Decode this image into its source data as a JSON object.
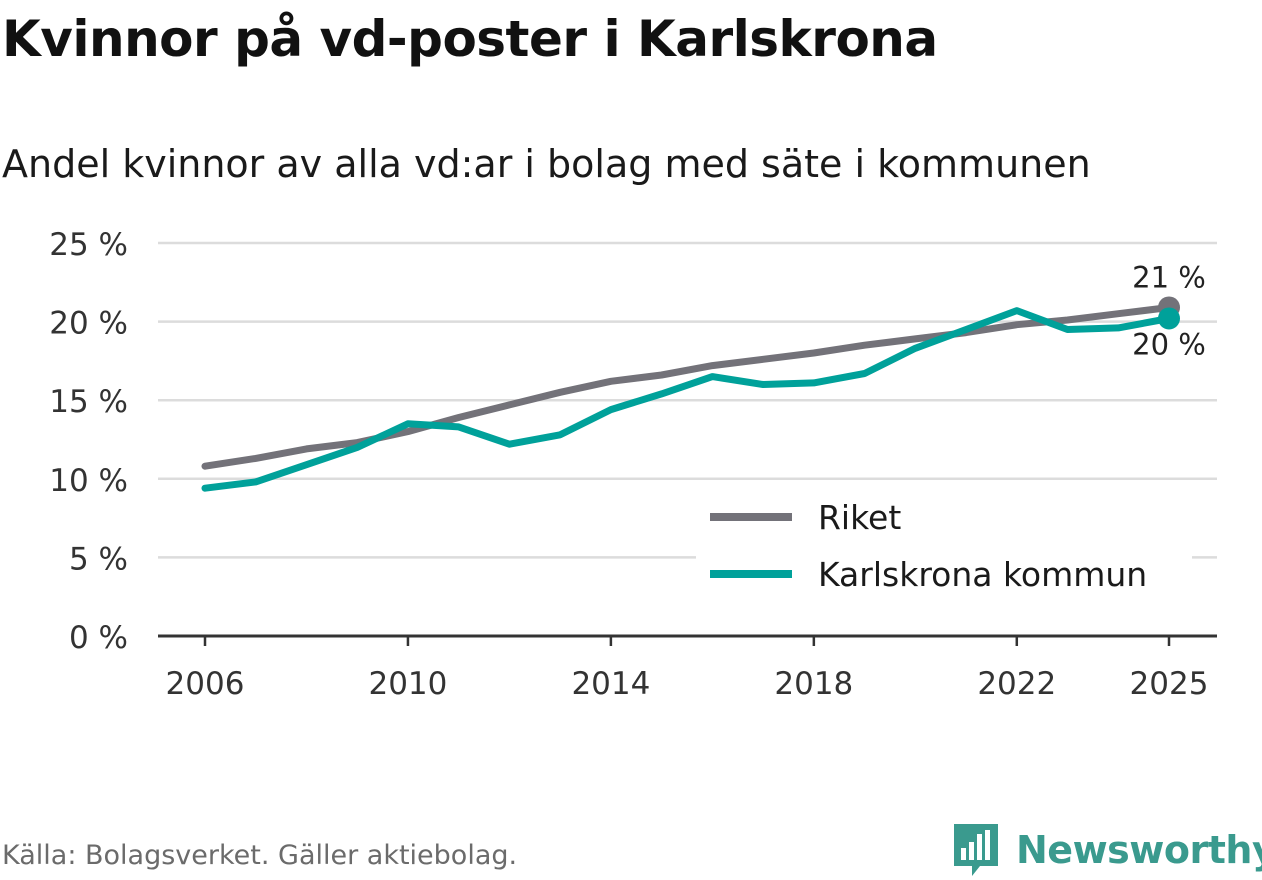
{
  "title": "Kvinnor på vd-poster i Karlskrona",
  "subtitle": "Andel kvinnor av alla vd:ar i bolag med säte i kommunen",
  "source": "Källa: Bolagsverket. Gäller aktiebolag.",
  "brand": {
    "name": "Newsworthy",
    "icon": "newsworthy-logo-icon",
    "color": "#3a9a8e"
  },
  "chart_data": {
    "type": "line",
    "title": "Kvinnor på vd-poster i Karlskrona",
    "subtitle": "Andel kvinnor av alla vd:ar i bolag med säte i kommunen",
    "xlabel": "",
    "ylabel": "",
    "x": [
      2006,
      2007,
      2008,
      2009,
      2010,
      2011,
      2012,
      2013,
      2014,
      2015,
      2016,
      2017,
      2018,
      2019,
      2020,
      2021,
      2022,
      2023,
      2024,
      2025
    ],
    "x_ticks": [
      2006,
      2010,
      2014,
      2018,
      2022,
      2025
    ],
    "x_tick_labels": [
      "2006",
      "2010",
      "2014",
      "2018",
      "2022",
      "2025"
    ],
    "ylim": [
      0,
      25
    ],
    "y_ticks": [
      0,
      5,
      10,
      15,
      20,
      25
    ],
    "y_tick_labels": [
      "0 %",
      "5 %",
      "10 %",
      "15 %",
      "20 %",
      "25 %"
    ],
    "grid": true,
    "legend_position": "bottom-right",
    "series": [
      {
        "name": "Riket",
        "color": "#737279",
        "values": [
          10.8,
          11.3,
          11.9,
          12.3,
          13.0,
          13.9,
          14.7,
          15.5,
          16.2,
          16.6,
          17.2,
          17.6,
          18.0,
          18.5,
          18.9,
          19.3,
          19.8,
          20.1,
          20.5,
          20.9
        ],
        "end_label": "21 %"
      },
      {
        "name": "Karlskrona kommun",
        "color": "#00a19a",
        "values": [
          9.4,
          9.8,
          10.9,
          12.0,
          13.5,
          13.3,
          12.2,
          12.8,
          14.4,
          15.4,
          16.5,
          16.0,
          16.1,
          16.7,
          18.3,
          19.5,
          20.7,
          19.5,
          19.6,
          20.2
        ],
        "end_label": "20 %"
      }
    ]
  }
}
